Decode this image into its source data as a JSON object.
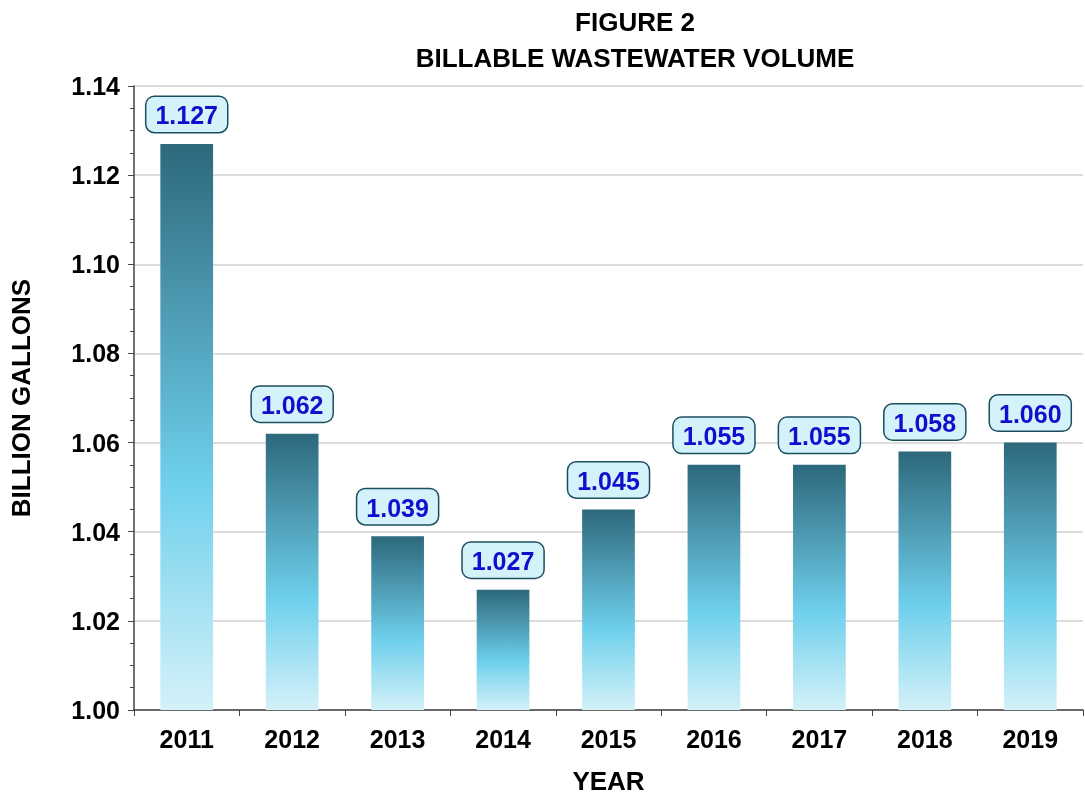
{
  "chart_data": {
    "type": "bar",
    "title": "FIGURE 2",
    "subtitle": "BILLABLE WASTEWATER VOLUME",
    "xlabel": "YEAR",
    "ylabel": "BILLION GALLONS",
    "categories": [
      "2011",
      "2012",
      "2013",
      "2014",
      "2015",
      "2016",
      "2017",
      "2018",
      "2019"
    ],
    "values": [
      1.127,
      1.062,
      1.039,
      1.027,
      1.045,
      1.055,
      1.055,
      1.058,
      1.06
    ],
    "value_labels": [
      "1.127",
      "1.062",
      "1.039",
      "1.027",
      "1.045",
      "1.055",
      "1.055",
      "1.058",
      "1.060"
    ],
    "color": "#6fd0ec",
    "ylim": [
      1.0,
      1.14
    ],
    "yticks": [
      {
        "value": 1.0,
        "label": "1.00"
      },
      {
        "value": 1.02,
        "label": "1.02"
      },
      {
        "value": 1.04,
        "label": "1.04"
      },
      {
        "value": 1.06,
        "label": "1.06"
      },
      {
        "value": 1.08,
        "label": "1.08"
      },
      {
        "value": 1.1,
        "label": "1.10"
      },
      {
        "value": 1.12,
        "label": "1.12"
      },
      {
        "value": 1.14,
        "label": "1.14"
      }
    ],
    "grid": "y"
  }
}
